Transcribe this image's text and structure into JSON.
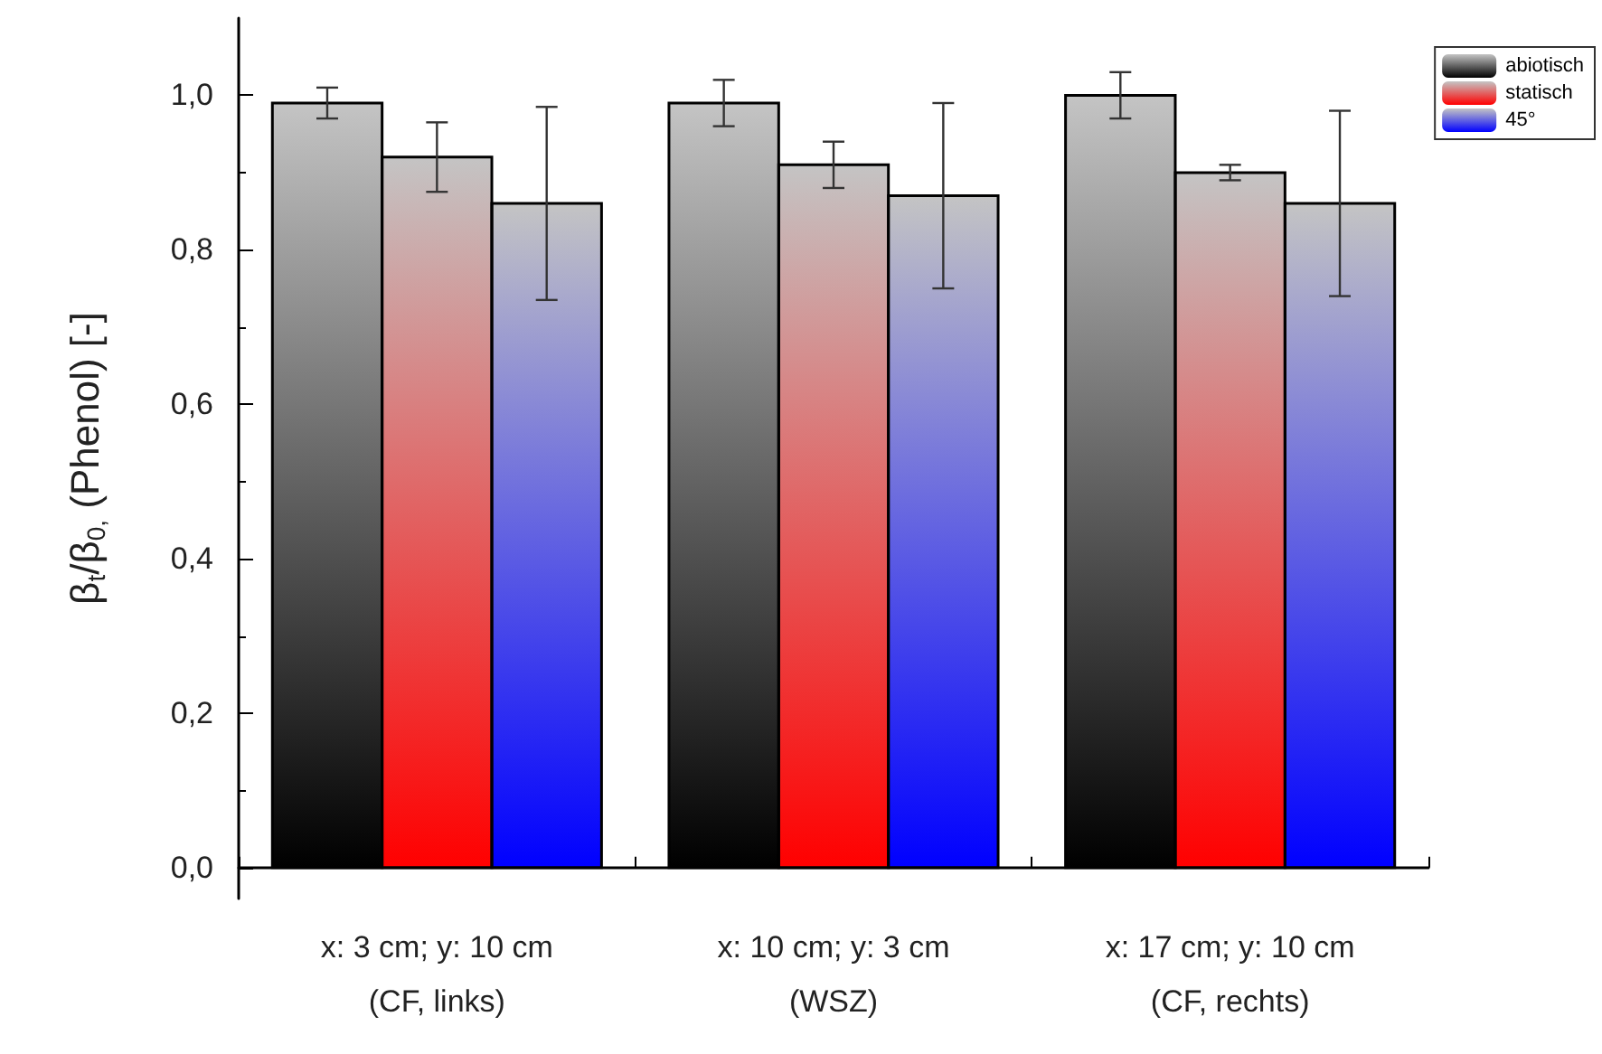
{
  "chart_data": {
    "type": "bar",
    "ylabel": "β$_{t}$/β$_{0,}$ (Phenol) [-]",
    "categories": [
      "x: 3 cm; y: 10 cm\n(CF, links)",
      "x: 10 cm; y: 3 cm\n(WSZ)",
      "x: 17 cm; y: 10 cm\n(CF, rechts)"
    ],
    "series": [
      {
        "name": "abiotisch",
        "color": "#000000",
        "values": [
          0.99,
          0.99,
          1.0
        ],
        "errors": [
          0.02,
          0.03,
          0.03
        ]
      },
      {
        "name": "statisch",
        "color": "#ff0000",
        "values": [
          0.92,
          0.91,
          0.9
        ],
        "errors": [
          0.045,
          0.03,
          0.01
        ]
      },
      {
        "name": "45°",
        "color": "#0000ff",
        "values": [
          0.86,
          0.87,
          0.86
        ],
        "errors": [
          0.125,
          0.12,
          0.12
        ]
      }
    ],
    "ylim": [
      -0.04,
      1.1
    ],
    "yticks": [
      {
        "value": 0,
        "label": "0,0"
      },
      {
        "value": 0.2,
        "label": "0,2"
      },
      {
        "value": 0.4,
        "label": "0,4"
      },
      {
        "value": 0.6,
        "label": "0,6"
      },
      {
        "value": 0.8,
        "label": "0,8"
      },
      {
        "value": 1.0,
        "label": "1,0"
      }
    ],
    "grid": false,
    "legend": "top right"
  }
}
